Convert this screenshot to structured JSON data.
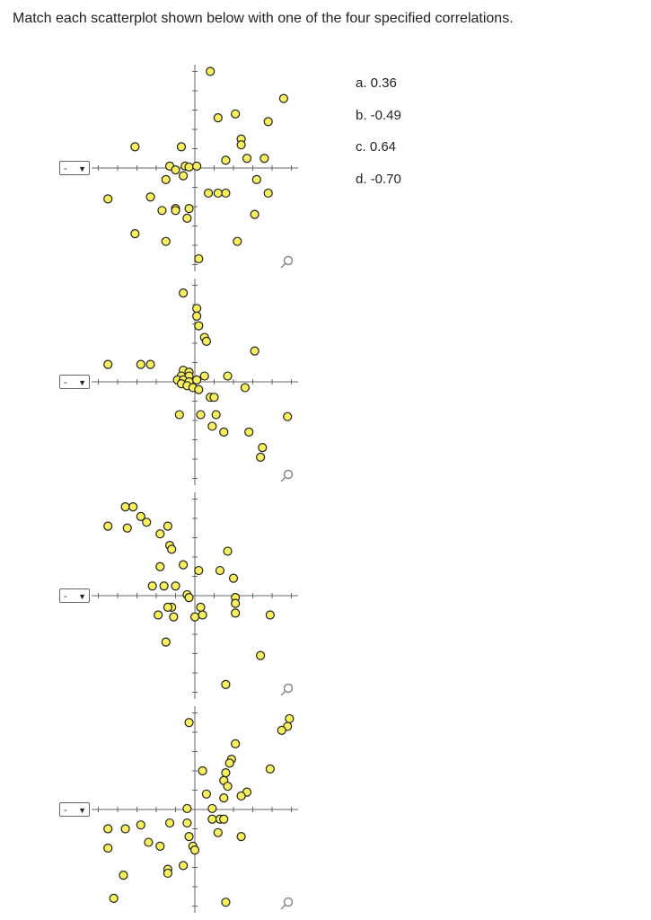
{
  "instruction": "Match each scatterplot shown below with one of the four specified correlations.",
  "select_value": "-",
  "options": [
    "a. 0.36",
    "b. -0.49",
    "c. 0.64",
    "d. -0.70"
  ],
  "colors": {
    "point_fill": "#f7ef5e",
    "point_stroke": "#222222",
    "axis": "#666666"
  },
  "icons": {
    "dropdown": "chevron-down-icon",
    "zoom": "magnify-icon"
  },
  "chart_data": [
    {
      "type": "scatter",
      "xlim": [
        -5.3,
        5.3
      ],
      "ylim": [
        -5.3,
        5.3
      ],
      "grid": false,
      "points": [
        [
          0.8,
          5
        ],
        [
          4.6,
          3.6
        ],
        [
          1.2,
          2.6
        ],
        [
          2.1,
          2.8
        ],
        [
          3.8,
          2.4
        ],
        [
          -3.1,
          1.1
        ],
        [
          -0.7,
          1.1
        ],
        [
          2.4,
          1.5
        ],
        [
          2.4,
          1.2
        ],
        [
          1.6,
          0.4
        ],
        [
          2.7,
          0.5
        ],
        [
          3.6,
          0.5
        ],
        [
          -1.3,
          0.1
        ],
        [
          -1.0,
          -0.1
        ],
        [
          -0.5,
          0.1
        ],
        [
          -0.3,
          0.05
        ],
        [
          0.1,
          0.1
        ],
        [
          -0.6,
          -0.4
        ],
        [
          -1.5,
          -0.6
        ],
        [
          3.2,
          -0.6
        ],
        [
          -4.5,
          -1.6
        ],
        [
          -2.3,
          -1.5
        ],
        [
          -1.0,
          -2.1
        ],
        [
          0.7,
          -1.3
        ],
        [
          1.2,
          -1.3
        ],
        [
          1.6,
          -1.3
        ],
        [
          3.8,
          -1.3
        ],
        [
          -1.7,
          -2.2
        ],
        [
          -1.0,
          -2.2
        ],
        [
          -0.3,
          -2.1
        ],
        [
          -0.4,
          -2.6
        ],
        [
          3.1,
          -2.4
        ],
        [
          -3.1,
          -3.4
        ],
        [
          -1.5,
          -3.8
        ],
        [
          2.2,
          -3.8
        ],
        [
          0.2,
          -4.7
        ]
      ]
    },
    {
      "type": "scatter",
      "xlim": [
        -5.3,
        5.3
      ],
      "ylim": [
        -5.3,
        5.3
      ],
      "grid": false,
      "points": [
        [
          -0.6,
          4.6
        ],
        [
          0.1,
          3.8
        ],
        [
          0.1,
          3.4
        ],
        [
          0.2,
          2.9
        ],
        [
          0.5,
          2.3
        ],
        [
          0.6,
          2.1
        ],
        [
          3.1,
          1.6
        ],
        [
          -4.5,
          0.9
        ],
        [
          -2.8,
          0.9
        ],
        [
          -2.3,
          0.9
        ],
        [
          -0.6,
          0.6
        ],
        [
          -0.3,
          0.5
        ],
        [
          -0.7,
          0.3
        ],
        [
          -0.3,
          0.3
        ],
        [
          0.5,
          0.3
        ],
        [
          1.7,
          0.3
        ],
        [
          -0.9,
          0.1
        ],
        [
          -0.6,
          0.1
        ],
        [
          -0.3,
          0.0
        ],
        [
          0.1,
          0.1
        ],
        [
          -0.7,
          -0.1
        ],
        [
          -0.4,
          -0.2
        ],
        [
          -0.1,
          -0.3
        ],
        [
          0.2,
          -0.4
        ],
        [
          2.6,
          -0.3
        ],
        [
          0.8,
          -0.8
        ],
        [
          1.0,
          -0.8
        ],
        [
          -0.8,
          -1.7
        ],
        [
          0.3,
          -1.7
        ],
        [
          1.1,
          -1.7
        ],
        [
          0.9,
          -2.3
        ],
        [
          1.5,
          -2.6
        ],
        [
          2.8,
          -2.6
        ],
        [
          4.8,
          -1.8
        ],
        [
          3.5,
          -3.4
        ],
        [
          3.4,
          -3.9
        ]
      ]
    },
    {
      "type": "scatter",
      "xlim": [
        -5.3,
        5.3
      ],
      "ylim": [
        -5.3,
        5.3
      ],
      "grid": false,
      "points": [
        [
          -3.6,
          4.6
        ],
        [
          -3.2,
          4.6
        ],
        [
          -2.8,
          4.1
        ],
        [
          -4.5,
          3.6
        ],
        [
          -3.5,
          3.5
        ],
        [
          -2.5,
          3.8
        ],
        [
          -1.4,
          3.6
        ],
        [
          -1.8,
          3.2
        ],
        [
          -1.3,
          2.6
        ],
        [
          -1.2,
          2.4
        ],
        [
          1.7,
          2.3
        ],
        [
          -1.8,
          1.5
        ],
        [
          -0.6,
          1.6
        ],
        [
          0.2,
          1.3
        ],
        [
          1.3,
          1.3
        ],
        [
          2.0,
          0.9
        ],
        [
          -2.2,
          0.5
        ],
        [
          -1.6,
          0.5
        ],
        [
          -1.0,
          0.5
        ],
        [
          -0.4,
          0.05
        ],
        [
          -0.3,
          -0.1
        ],
        [
          2.1,
          -0.1
        ],
        [
          2.1,
          -0.4
        ],
        [
          -1.2,
          -0.6
        ],
        [
          -1.4,
          -0.6
        ],
        [
          0.3,
          -0.6
        ],
        [
          2.1,
          -0.9
        ],
        [
          -1.9,
          -1.0
        ],
        [
          -1.1,
          -1.1
        ],
        [
          0.0,
          -1.1
        ],
        [
          0.4,
          -1.0
        ],
        [
          3.9,
          -1.0
        ],
        [
          -1.5,
          -2.4
        ],
        [
          3.4,
          -3.1
        ],
        [
          1.6,
          -4.6
        ]
      ]
    },
    {
      "type": "scatter",
      "xlim": [
        -5.3,
        5.3
      ],
      "ylim": [
        -5.3,
        5.3
      ],
      "grid": false,
      "points": [
        [
          4.9,
          4.7
        ],
        [
          4.8,
          4.3
        ],
        [
          4.5,
          4.1
        ],
        [
          -0.3,
          4.5
        ],
        [
          2.1,
          3.4
        ],
        [
          1.9,
          2.6
        ],
        [
          1.8,
          2.4
        ],
        [
          3.9,
          2.1
        ],
        [
          0.4,
          2.0
        ],
        [
          1.6,
          1.9
        ],
        [
          1.5,
          1.5
        ],
        [
          1.7,
          1.2
        ],
        [
          2.7,
          0.9
        ],
        [
          2.4,
          0.7
        ],
        [
          0.6,
          0.8
        ],
        [
          1.5,
          0.6
        ],
        [
          -0.4,
          0.05
        ],
        [
          0.9,
          0.05
        ],
        [
          -4.5,
          -1.0
        ],
        [
          -3.6,
          -1.0
        ],
        [
          -2.8,
          -0.8
        ],
        [
          -1.3,
          -0.7
        ],
        [
          -0.4,
          -0.7
        ],
        [
          0.9,
          -0.5
        ],
        [
          1.3,
          -0.5
        ],
        [
          1.5,
          -0.5
        ],
        [
          -0.3,
          -1.4
        ],
        [
          1.2,
          -1.2
        ],
        [
          -2.4,
          -1.7
        ],
        [
          -1.8,
          -1.9
        ],
        [
          2.4,
          -1.4
        ],
        [
          -0.1,
          -1.9
        ],
        [
          0.0,
          -2.1
        ],
        [
          -4.5,
          -2.0
        ],
        [
          -3.7,
          -3.4
        ],
        [
          -1.4,
          -3.1
        ],
        [
          -0.6,
          -2.9
        ],
        [
          -1.4,
          -3.3
        ],
        [
          -4.2,
          -4.6
        ],
        [
          1.6,
          -4.8
        ]
      ]
    }
  ]
}
